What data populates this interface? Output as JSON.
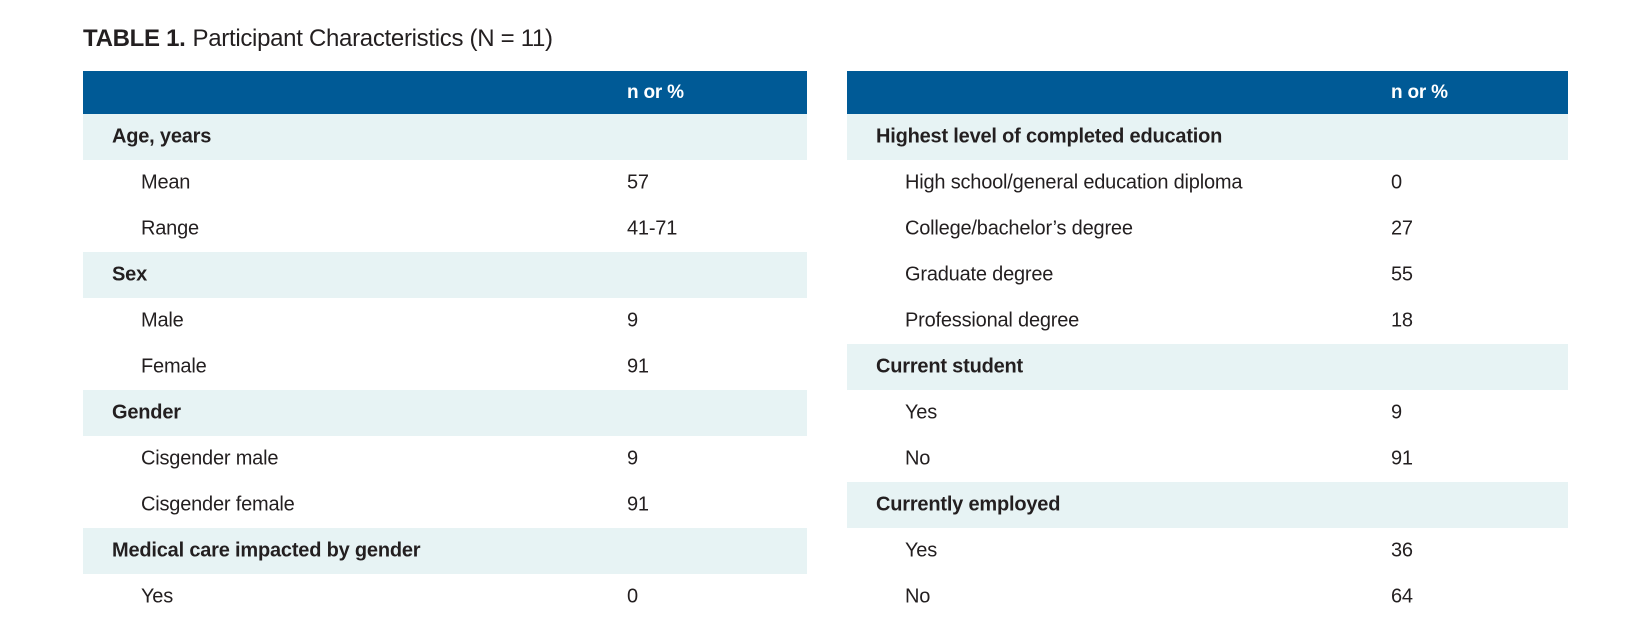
{
  "title": {
    "label": "TABLE 1.",
    "text": "Participant Characteristics (N = 11)"
  },
  "colors": {
    "header_bg": "#005A96",
    "header_text": "#FFFFFF",
    "section_row_bg": "#E7F3F4",
    "body_text": "#231F20",
    "page_bg": "#FFFFFF"
  },
  "tables": [
    {
      "value_header": "n or %",
      "rows": [
        {
          "type": "section",
          "label": "Age, years",
          "value": ""
        },
        {
          "type": "item",
          "label": "Mean",
          "value": "57"
        },
        {
          "type": "item",
          "label": "Range",
          "value": "41-71"
        },
        {
          "type": "section",
          "label": "Sex",
          "value": ""
        },
        {
          "type": "item",
          "label": "Male",
          "value": "9"
        },
        {
          "type": "item",
          "label": "Female",
          "value": "91"
        },
        {
          "type": "section",
          "label": "Gender",
          "value": ""
        },
        {
          "type": "item",
          "label": "Cisgender male",
          "value": "9"
        },
        {
          "type": "item",
          "label": "Cisgender female",
          "value": "91"
        },
        {
          "type": "section",
          "label": "Medical care impacted by gender",
          "value": ""
        },
        {
          "type": "item",
          "label": "Yes",
          "value": "0"
        }
      ]
    },
    {
      "value_header": "n or %",
      "rows": [
        {
          "type": "section",
          "label": "Highest level of completed education",
          "value": ""
        },
        {
          "type": "item",
          "label": "High school/general education diploma",
          "value": "0"
        },
        {
          "type": "item",
          "label": "College/bachelor’s degree",
          "value": "27"
        },
        {
          "type": "item",
          "label": "Graduate degree",
          "value": "55"
        },
        {
          "type": "item",
          "label": "Professional degree",
          "value": "18"
        },
        {
          "type": "section",
          "label": "Current student",
          "value": ""
        },
        {
          "type": "item",
          "label": "Yes",
          "value": "9"
        },
        {
          "type": "item",
          "label": "No",
          "value": "91"
        },
        {
          "type": "section",
          "label": "Currently employed",
          "value": ""
        },
        {
          "type": "item",
          "label": "Yes",
          "value": "36"
        },
        {
          "type": "item",
          "label": "No",
          "value": "64"
        }
      ]
    }
  ]
}
